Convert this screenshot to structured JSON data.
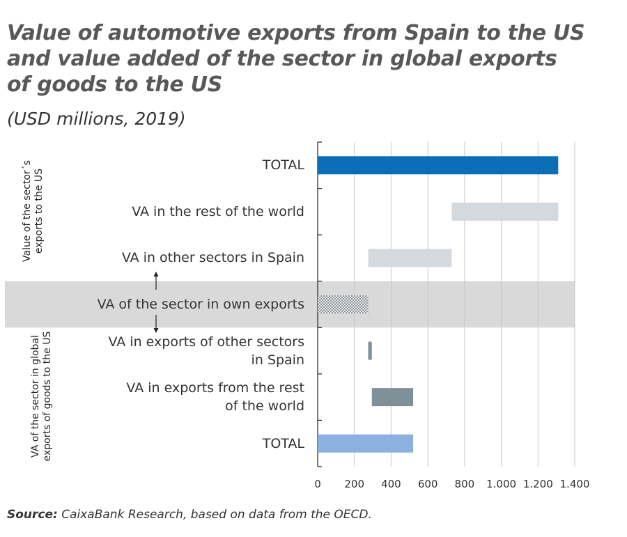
{
  "chart_data": {
    "type": "waterfall",
    "title": [
      "Value of automotive exports from Spain to the US",
      "and value added of the sector in global exports",
      "of goods to the US"
    ],
    "subtitle": "(USD millions, 2019)",
    "group_labels": [
      "Value of the sector´s exports to the US",
      "VA of the sector in global exports of goods to the US"
    ],
    "categories": [
      "TOTAL",
      "VA in the rest of the world",
      "VA in other sectors in Spain",
      "VA of the sector in own exports",
      "VA in exports of other sectors\nin Spain",
      "VA in exports from the rest\nof the world",
      "TOTAL"
    ],
    "values": [
      1310,
      580,
      455,
      275,
      20,
      225,
      520
    ],
    "measure": [
      "total",
      "relative",
      "relative",
      "base",
      "relative",
      "relative",
      "total"
    ],
    "colors": [
      "#0b6fb8",
      "#d3d9dc",
      "#d3d9dc",
      "#a9b2b8",
      "#7f9098",
      "#7f9098",
      "#8cb0df"
    ],
    "textured": [
      false,
      false,
      false,
      true,
      false,
      false,
      false
    ],
    "xlim": [
      0,
      1400
    ],
    "xticks": [
      0,
      200,
      400,
      600,
      800,
      {
        "value": 1000,
        "label": "1.000"
      },
      {
        "value": 1200,
        "label": "1.200"
      },
      {
        "value": 1400,
        "label": "1.400"
      }
    ],
    "grid": true,
    "source_label": "Source:",
    "source": " CaixaBank Research, based on data from the OECD."
  }
}
